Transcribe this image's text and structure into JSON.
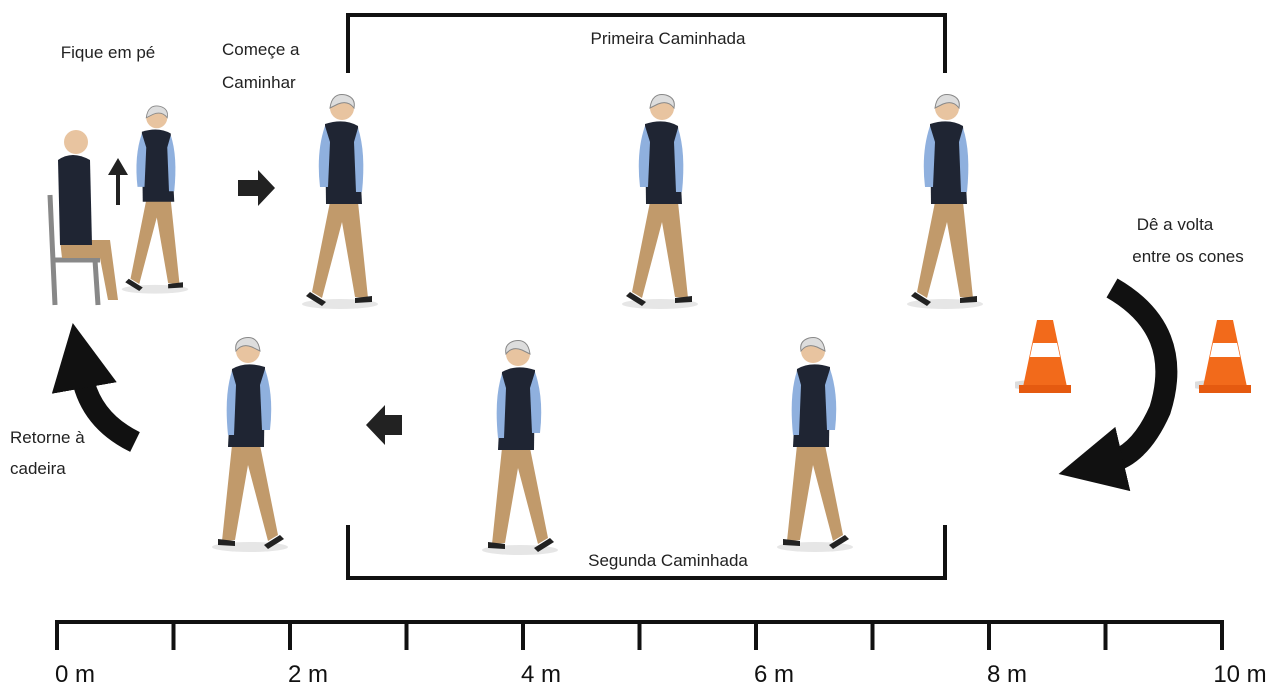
{
  "steps": {
    "stand_up": "Fique em pé",
    "start_walking": [
      "Começe a",
      "Caminhar"
    ],
    "first_walk": "Primeira Caminhada",
    "turn": [
      "Dê a volta",
      "entre os cones"
    ],
    "second_walk": "Segunda Caminhada",
    "return": [
      "Retorne à",
      "cadeira"
    ]
  },
  "scale": {
    "labels": [
      "0 m",
      "2 m",
      "4 m",
      "6 m",
      "8 m",
      "10 m"
    ]
  }
}
